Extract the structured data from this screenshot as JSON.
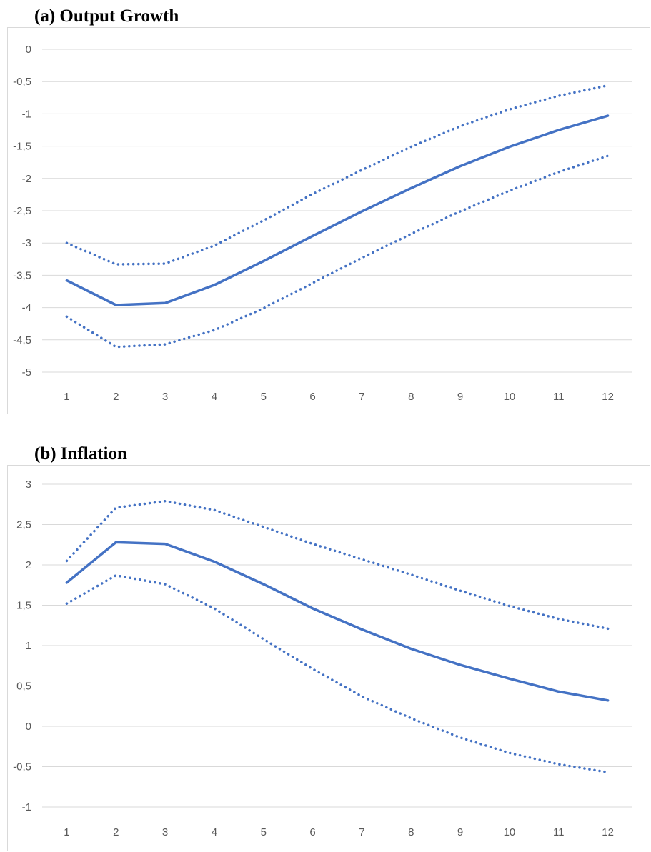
{
  "chart_data": [
    {
      "type": "line",
      "title": "(a) Output Growth",
      "xlabel": "",
      "ylabel": "",
      "x": [
        1,
        2,
        3,
        4,
        5,
        6,
        7,
        8,
        9,
        10,
        11,
        12
      ],
      "xticks": [
        "1",
        "2",
        "3",
        "4",
        "5",
        "6",
        "7",
        "8",
        "9",
        "10",
        "11",
        "12"
      ],
      "ylim": [
        -5,
        0
      ],
      "yticks": [
        "0",
        "-0,5",
        "-1",
        "-1,5",
        "-2",
        "-2,5",
        "-3",
        "-3,5",
        "-4",
        "-4,5",
        "-5"
      ],
      "grid": true,
      "legend": "none",
      "color": "#4472C4",
      "series": [
        {
          "style": "solid",
          "values": [
            -3.58,
            -3.96,
            -3.93,
            -3.65,
            -3.28,
            -2.89,
            -2.51,
            -2.15,
            -1.81,
            -1.51,
            -1.25,
            -1.03
          ]
        },
        {
          "style": "dotted",
          "values": [
            -3.0,
            -3.33,
            -3.32,
            -3.04,
            -2.65,
            -2.24,
            -1.87,
            -1.51,
            -1.19,
            -0.93,
            -0.72,
            -0.56
          ]
        },
        {
          "style": "dotted",
          "values": [
            -4.14,
            -4.61,
            -4.57,
            -4.35,
            -4.01,
            -3.62,
            -3.23,
            -2.86,
            -2.51,
            -2.19,
            -1.9,
            -1.65
          ]
        }
      ]
    },
    {
      "type": "line",
      "title": "(b) Inflation",
      "xlabel": "",
      "ylabel": "",
      "x": [
        1,
        2,
        3,
        4,
        5,
        6,
        7,
        8,
        9,
        10,
        11,
        12
      ],
      "xticks": [
        "1",
        "2",
        "3",
        "4",
        "5",
        "6",
        "7",
        "8",
        "9",
        "10",
        "11",
        "12"
      ],
      "ylim": [
        -1,
        3
      ],
      "yticks": [
        "3",
        "2,5",
        "2",
        "1,5",
        "1",
        "0,5",
        "0",
        "-0,5",
        "-1"
      ],
      "grid": true,
      "legend": "none",
      "color": "#4472C4",
      "series": [
        {
          "style": "solid",
          "values": [
            1.78,
            2.28,
            2.26,
            2.04,
            1.76,
            1.46,
            1.2,
            0.96,
            0.76,
            0.59,
            0.43,
            0.32
          ]
        },
        {
          "style": "dotted",
          "values": [
            2.05,
            2.71,
            2.79,
            2.68,
            2.47,
            2.26,
            2.07,
            1.88,
            1.68,
            1.49,
            1.33,
            1.21
          ]
        },
        {
          "style": "dotted",
          "values": [
            1.52,
            1.87,
            1.76,
            1.46,
            1.08,
            0.71,
            0.37,
            0.1,
            -0.14,
            -0.33,
            -0.47,
            -0.57
          ]
        }
      ]
    }
  ]
}
